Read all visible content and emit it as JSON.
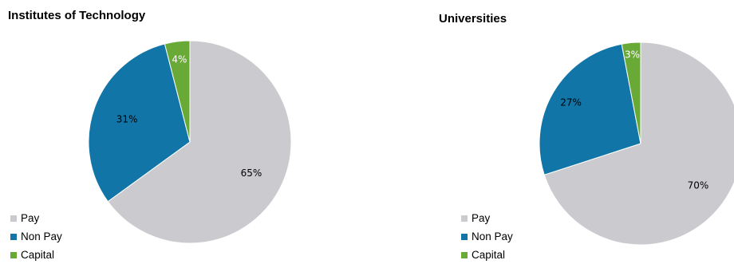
{
  "legend_colors": {
    "Pay": "#cbcbcf",
    "Non Pay": "#1175a7",
    "Capital": "#69a936"
  },
  "chart_data": [
    {
      "type": "pie",
      "title": "Institutes of Technology",
      "categories": [
        "Pay",
        "Non Pay",
        "Capital"
      ],
      "values": [
        65,
        31,
        4
      ],
      "labels": [
        "65%",
        "31%",
        "4%"
      ],
      "colors": [
        "#cbcbcf",
        "#1175a7",
        "#69a936"
      ],
      "start": "12 o'clock, clockwise",
      "legend": "bottom-left"
    },
    {
      "type": "pie",
      "title": "Universities",
      "categories": [
        "Pay",
        "Non Pay",
        "Capital"
      ],
      "values": [
        70,
        27,
        3
      ],
      "labels": [
        "70%",
        "27%",
        "3%"
      ],
      "colors": [
        "#cbcbcf",
        "#1175a7",
        "#69a936"
      ],
      "start": "12 o'clock, clockwise",
      "legend": "bottom-left"
    }
  ]
}
